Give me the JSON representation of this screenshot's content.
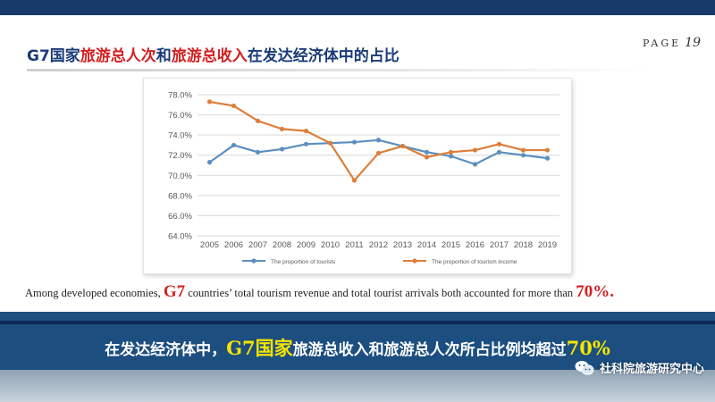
{
  "slide": {
    "page_label": "PAGE",
    "page_number": "19",
    "title_parts": [
      {
        "text": "G7国家",
        "color": "blue"
      },
      {
        "text": "旅游总人次",
        "color": "red"
      },
      {
        "text": "和",
        "color": "blue"
      },
      {
        "text": "旅游总收入",
        "color": "red"
      },
      {
        "text": "在发达经济体中的占比",
        "color": "blue"
      }
    ],
    "caption": {
      "part1": "Among developed economies, ",
      "g7": "G7",
      "part2": " countries’ total tourism revenue and total tourist arrivals both accounted for more than ",
      "pct": "70%."
    },
    "banner": {
      "part1": "在发达经济体中，",
      "em1": "G7国家",
      "part2": "旅游总收入和旅游总人次所占比例均超过",
      "em2": "70%"
    },
    "watermark": "社科院旅游研究中心",
    "colors": {
      "header": "#173a6b",
      "title_blue": "#1a3b78",
      "title_red": "#d41f1f",
      "band": "#1c4e80",
      "band_em": "#f7e400"
    }
  },
  "chart_data": {
    "type": "line",
    "x": [
      "2005",
      "2006",
      "2007",
      "2008",
      "2009",
      "2010",
      "2011",
      "2012",
      "2013",
      "2014",
      "2015",
      "2016",
      "2017",
      "2018",
      "2019"
    ],
    "series": [
      {
        "name": "The proportion of tourists",
        "color": "#5b8fc0",
        "values": [
          71.3,
          73.0,
          72.3,
          72.6,
          73.1,
          73.2,
          73.3,
          73.5,
          72.9,
          72.3,
          71.9,
          71.1,
          72.3,
          72.0,
          71.7
        ]
      },
      {
        "name": "The proportion of tourism income",
        "color": "#dd7e39",
        "values": [
          77.3,
          76.9,
          75.4,
          74.6,
          74.4,
          73.2,
          69.5,
          72.2,
          72.9,
          71.8,
          72.3,
          72.5,
          73.1,
          72.5,
          72.5
        ]
      }
    ],
    "y_ticks": [
      "64.0%",
      "66.0%",
      "68.0%",
      "70.0%",
      "72.0%",
      "74.0%",
      "76.0%",
      "78.0%"
    ],
    "ylim": [
      64,
      78
    ],
    "grid": true,
    "legend_position": "bottom"
  }
}
